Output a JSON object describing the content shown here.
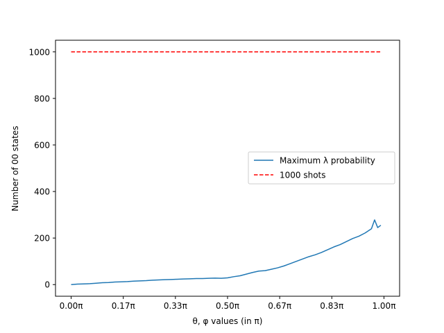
{
  "chart_data": {
    "type": "line",
    "title": "",
    "xlabel": "θ, φ values (in π)",
    "ylabel": "Number of 00 states",
    "xlim": [
      -0.05,
      1.05
    ],
    "ylim": [
      -50,
      1050
    ],
    "grid": false,
    "legend_position": "center-right",
    "x_ticks": [
      {
        "value": 0.0,
        "label": "0.00π"
      },
      {
        "value": 0.1667,
        "label": "0.17π"
      },
      {
        "value": 0.3333,
        "label": "0.33π"
      },
      {
        "value": 0.5,
        "label": "0.50π"
      },
      {
        "value": 0.6667,
        "label": "0.67π"
      },
      {
        "value": 0.8333,
        "label": "0.83π"
      },
      {
        "value": 1.0,
        "label": "1.00π"
      }
    ],
    "y_ticks": [
      {
        "value": 0,
        "label": "0"
      },
      {
        "value": 200,
        "label": "200"
      },
      {
        "value": 400,
        "label": "400"
      },
      {
        "value": 600,
        "label": "600"
      },
      {
        "value": 800,
        "label": "800"
      },
      {
        "value": 1000,
        "label": "1000"
      }
    ],
    "series": [
      {
        "name": "Maximum λ probability",
        "color": "#1f77b4",
        "style": "solid",
        "x": [
          0.0,
          0.02,
          0.04,
          0.06,
          0.08,
          0.1,
          0.12,
          0.14,
          0.16,
          0.18,
          0.2,
          0.22,
          0.24,
          0.26,
          0.28,
          0.3,
          0.32,
          0.34,
          0.36,
          0.38,
          0.4,
          0.42,
          0.44,
          0.46,
          0.48,
          0.5,
          0.52,
          0.54,
          0.56,
          0.58,
          0.6,
          0.62,
          0.64,
          0.66,
          0.68,
          0.7,
          0.72,
          0.74,
          0.76,
          0.78,
          0.8,
          0.82,
          0.84,
          0.86,
          0.88,
          0.9,
          0.92,
          0.94,
          0.96,
          0.97,
          0.98,
          0.99
        ],
        "values": [
          0,
          2,
          3,
          4,
          6,
          8,
          9,
          11,
          12,
          13,
          15,
          16,
          17,
          19,
          20,
          21,
          22,
          23,
          24,
          25,
          26,
          26,
          27,
          28,
          27,
          29,
          34,
          38,
          45,
          52,
          58,
          60,
          66,
          72,
          80,
          90,
          100,
          110,
          120,
          128,
          138,
          150,
          162,
          172,
          185,
          198,
          208,
          222,
          240,
          278,
          245,
          255
        ]
      },
      {
        "name": "1000 shots",
        "color": "#ff0000",
        "style": "dashed",
        "x": [
          0.0,
          0.99
        ],
        "values": [
          1000,
          1000
        ]
      }
    ]
  }
}
